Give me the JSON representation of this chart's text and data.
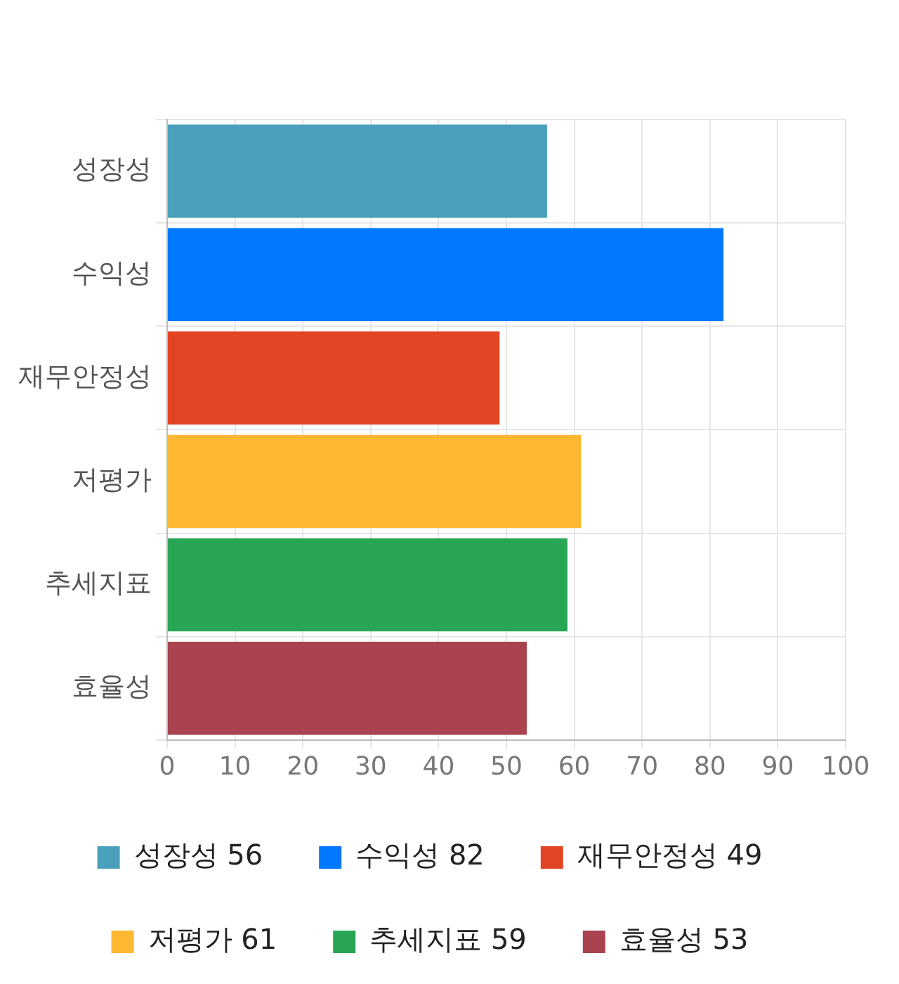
{
  "chart_data": {
    "type": "bar",
    "orientation": "horizontal",
    "categories": [
      "성장성",
      "수익성",
      "재무안정성",
      "저평가",
      "추세지표",
      "효율성"
    ],
    "series": [
      {
        "name": "성장성 56",
        "color": "#4aa0ba",
        "values": [
          56,
          null,
          null,
          null,
          null,
          null
        ]
      },
      {
        "name": "수익성 82",
        "color": "#0078ff",
        "values": [
          null,
          82,
          null,
          null,
          null,
          null
        ]
      },
      {
        "name": "재무안정성 49",
        "color": "#e24523",
        "values": [
          null,
          null,
          49,
          null,
          null,
          null
        ]
      },
      {
        "name": "저평가 61",
        "color": "#ffb833",
        "values": [
          null,
          null,
          null,
          61,
          null,
          null
        ]
      },
      {
        "name": "추세지표 59",
        "color": "#28a655",
        "values": [
          null,
          null,
          null,
          null,
          59,
          null
        ]
      },
      {
        "name": "효율성 53",
        "color": "#a8434f",
        "values": [
          null,
          null,
          null,
          null,
          null,
          53
        ]
      }
    ],
    "xlim": [
      0,
      100
    ],
    "xticks": [
      0,
      10,
      20,
      30,
      40,
      50,
      60,
      70,
      80,
      90,
      100
    ],
    "grid": true,
    "legend": "bottom"
  }
}
